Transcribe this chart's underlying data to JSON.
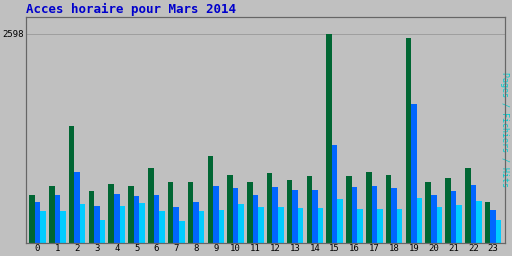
{
  "title": "Acces horaire pour Mars 2014",
  "title_color": "#0000cc",
  "title_fontsize": 9,
  "background_color": "#c0c0c0",
  "plot_bg_color": "#c0c0c0",
  "ylabel_right": "Pages / Fichiers / Hits",
  "ylabel_right_color": "#00cccc",
  "ytick_label": "2598",
  "categories": [
    0,
    1,
    2,
    3,
    4,
    5,
    6,
    7,
    8,
    9,
    10,
    11,
    12,
    13,
    14,
    15,
    16,
    17,
    18,
    19,
    20,
    21,
    22,
    23
  ],
  "green_values": [
    600,
    700,
    1450,
    640,
    730,
    700,
    930,
    750,
    760,
    1080,
    840,
    760,
    870,
    780,
    830,
    2598,
    830,
    880,
    840,
    2540,
    750,
    810,
    930,
    510
  ],
  "blue_values": [
    510,
    590,
    880,
    460,
    610,
    580,
    590,
    450,
    510,
    710,
    680,
    600,
    690,
    660,
    660,
    1220,
    690,
    700,
    680,
    1730,
    600,
    640,
    720,
    410
  ],
  "cyan_values": [
    400,
    400,
    480,
    280,
    460,
    500,
    400,
    270,
    400,
    410,
    480,
    450,
    450,
    430,
    430,
    540,
    420,
    420,
    420,
    560,
    450,
    470,
    520,
    280
  ],
  "bar_width": 0.28,
  "ylim_max": 2598,
  "green_color": "#006633",
  "blue_color": "#0066ff",
  "cyan_color": "#00ccff",
  "grid_color": "#999999",
  "border_color": "#666666",
  "font_family": "monospace"
}
